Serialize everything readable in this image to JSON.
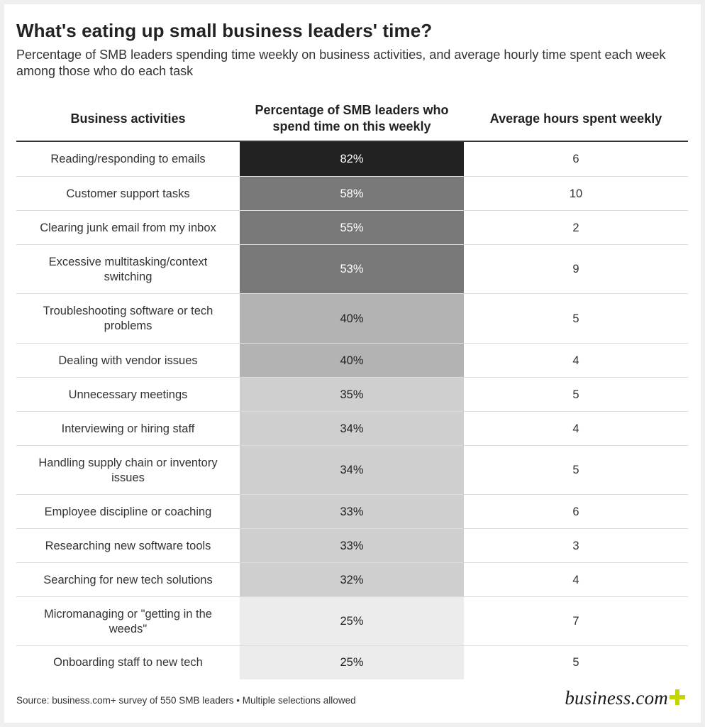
{
  "title": "What's eating up small business leaders' time?",
  "subtitle": "Percentage of SMB leaders spending time weekly on business activities, and average hourly time spent each week among those who do each task",
  "source": "Source: business.com+ survey of 550 SMB leaders • Multiple selections allowed",
  "logo": {
    "text": "business.com",
    "plus_color": "#c4d600"
  },
  "colors": {
    "header_rule": "#333333",
    "row_separator": "#dcdcdc",
    "shade_darkest": "#222222",
    "shade_dark": "#787878",
    "shade_mid": "#b3b3b3",
    "shade_light": "#cfcfcf",
    "shade_lightest": "#ececec"
  },
  "chart_data": {
    "type": "table",
    "title": "What's eating up small business leaders' time?",
    "subtitle": "Percentage of SMB leaders spending time weekly on business activities, and average hourly time spent each week among those who do each task",
    "columns": [
      "Business activities",
      "Percentage of SMB leaders who spend time on this weekly",
      "Average hours spent weekly"
    ],
    "rows": [
      {
        "activity": "Reading/responding to emails",
        "percent": 82,
        "percent_label": "82%",
        "hours": 6,
        "hours_label": "6"
      },
      {
        "activity": "Customer support tasks",
        "percent": 58,
        "percent_label": "58%",
        "hours": 10,
        "hours_label": "10"
      },
      {
        "activity": "Clearing junk email from my inbox",
        "percent": 55,
        "percent_label": "55%",
        "hours": 2,
        "hours_label": "2"
      },
      {
        "activity": "Excessive multitasking/context switching",
        "percent": 53,
        "percent_label": "53%",
        "hours": 9,
        "hours_label": "9"
      },
      {
        "activity": "Troubleshooting software or tech problems",
        "percent": 40,
        "percent_label": "40%",
        "hours": 5,
        "hours_label": "5"
      },
      {
        "activity": "Dealing with vendor issues",
        "percent": 40,
        "percent_label": "40%",
        "hours": 4,
        "hours_label": "4"
      },
      {
        "activity": "Unnecessary meetings",
        "percent": 35,
        "percent_label": "35%",
        "hours": 5,
        "hours_label": "5"
      },
      {
        "activity": "Interviewing or hiring staff",
        "percent": 34,
        "percent_label": "34%",
        "hours": 4,
        "hours_label": "4"
      },
      {
        "activity": "Handling supply chain or inventory issues",
        "percent": 34,
        "percent_label": "34%",
        "hours": 5,
        "hours_label": "5"
      },
      {
        "activity": "Employee discipline or coaching",
        "percent": 33,
        "percent_label": "33%",
        "hours": 6,
        "hours_label": "6"
      },
      {
        "activity": "Researching new software tools",
        "percent": 33,
        "percent_label": "33%",
        "hours": 3,
        "hours_label": "3"
      },
      {
        "activity": "Searching for new tech solutions",
        "percent": 32,
        "percent_label": "32%",
        "hours": 4,
        "hours_label": "4"
      },
      {
        "activity": "Micromanaging or \"getting in the weeds\"",
        "percent": 25,
        "percent_label": "25%",
        "hours": 7,
        "hours_label": "7"
      },
      {
        "activity": "Onboarding staff to new tech",
        "percent": 25,
        "percent_label": "25%",
        "hours": 5,
        "hours_label": "5"
      }
    ]
  }
}
